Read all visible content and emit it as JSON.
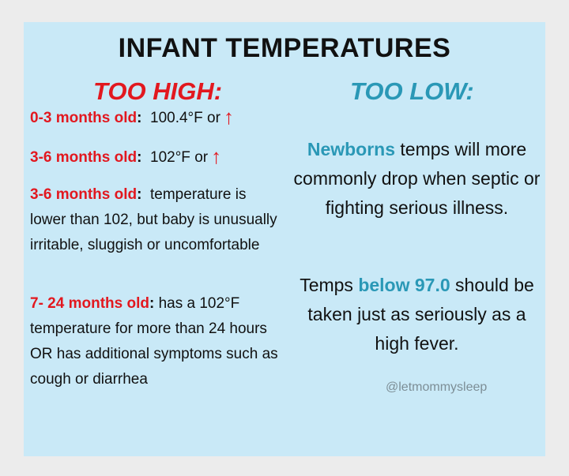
{
  "title": "INFANT TEMPERATURES",
  "too_high": {
    "heading": "TOO HIGH:",
    "items": [
      {
        "label": "0-3 months old",
        "colon": ":",
        "text": "  100.4°F or",
        "arrow": "↑"
      },
      {
        "label": "3-6 months old",
        "colon": ":",
        "text": "  102°F or",
        "arrow": "↑"
      },
      {
        "label": "3-6 months old",
        "colon": ":",
        "text": "  temperature is lower than 102, but baby is unusually irritable, sluggish or uncomfortable"
      },
      {
        "label": "7- 24 months old",
        "colon": ":",
        "text": " has a 102°F temperature for more than 24 hours OR has additional symptoms such as cough or diarrhea"
      }
    ]
  },
  "too_low": {
    "heading": "TOO LOW:",
    "para1_highlight": "Newborns",
    "para1_text": " temps will more commonly drop when septic or fighting serious illness.",
    "para2_before": "Temps ",
    "para2_highlight": "below 97.0",
    "para2_after": " should be taken just as seriously as a high fever."
  },
  "credit": "@letmommysleep",
  "colors": {
    "red": "#e2181f",
    "blue": "#2a98b6",
    "background": "#c9e9f7"
  }
}
